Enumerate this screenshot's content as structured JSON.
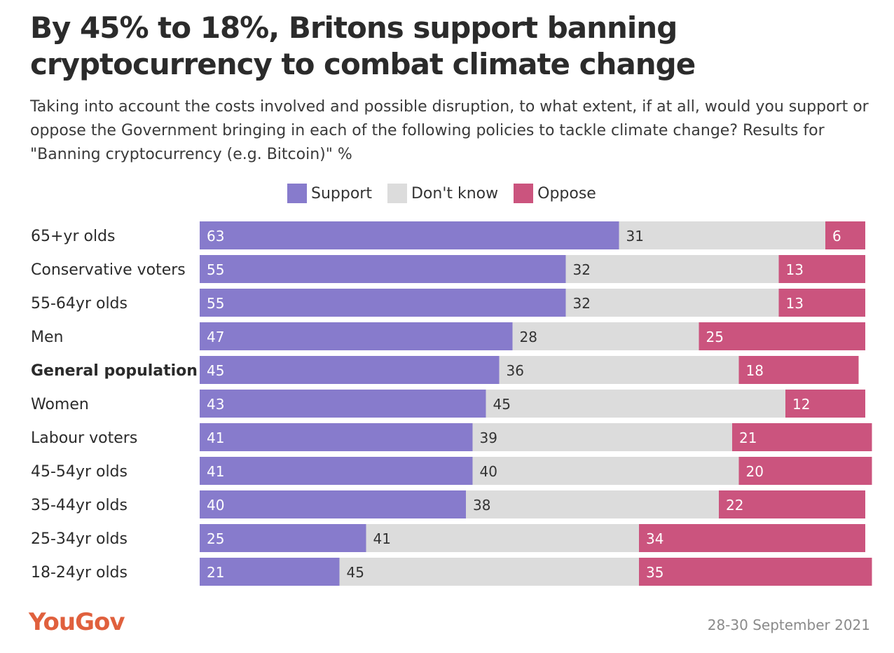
{
  "header": {
    "title": "By 45% to 18%, Britons support banning cryptocurrency to combat climate change",
    "subtitle": "Taking into account the costs involved and possible disruption, to what extent, if at all, would you support or oppose the Government bringing in each of the following policies to tackle climate change? Results for \"Banning cryptocurrency (e.g. Bitcoin)\" %"
  },
  "legend": [
    {
      "label": "Support",
      "color": "#877bcc"
    },
    {
      "label": "Don't know",
      "color": "#dcdcdc"
    },
    {
      "label": "Oppose",
      "color": "#cb547e"
    }
  ],
  "footer": {
    "logo": "YouGov",
    "date": "28-30 September 2021"
  },
  "chart_data": {
    "type": "bar",
    "orientation": "horizontal",
    "stacked": true,
    "unit": "%",
    "categories": [
      "65+yr olds",
      "Conservative voters",
      "55-64yr olds",
      "Men",
      "General population",
      "Women",
      "Labour voters",
      "45-54yr olds",
      "35-44yr olds",
      "25-34yr olds",
      "18-24yr olds"
    ],
    "highlighted_category": "General population",
    "series": [
      {
        "name": "Support",
        "color": "#877bcc",
        "label_color": "#ffffff",
        "values": [
          63,
          55,
          55,
          47,
          45,
          43,
          41,
          41,
          40,
          25,
          21
        ]
      },
      {
        "name": "Don't know",
        "color": "#dcdcdc",
        "label_color": "#333333",
        "values": [
          31,
          32,
          32,
          28,
          36,
          45,
          39,
          40,
          38,
          41,
          45
        ]
      },
      {
        "name": "Oppose",
        "color": "#cb547e",
        "label_color": "#ffffff",
        "values": [
          6,
          13,
          13,
          25,
          18,
          12,
          21,
          20,
          22,
          34,
          35
        ]
      }
    ]
  }
}
